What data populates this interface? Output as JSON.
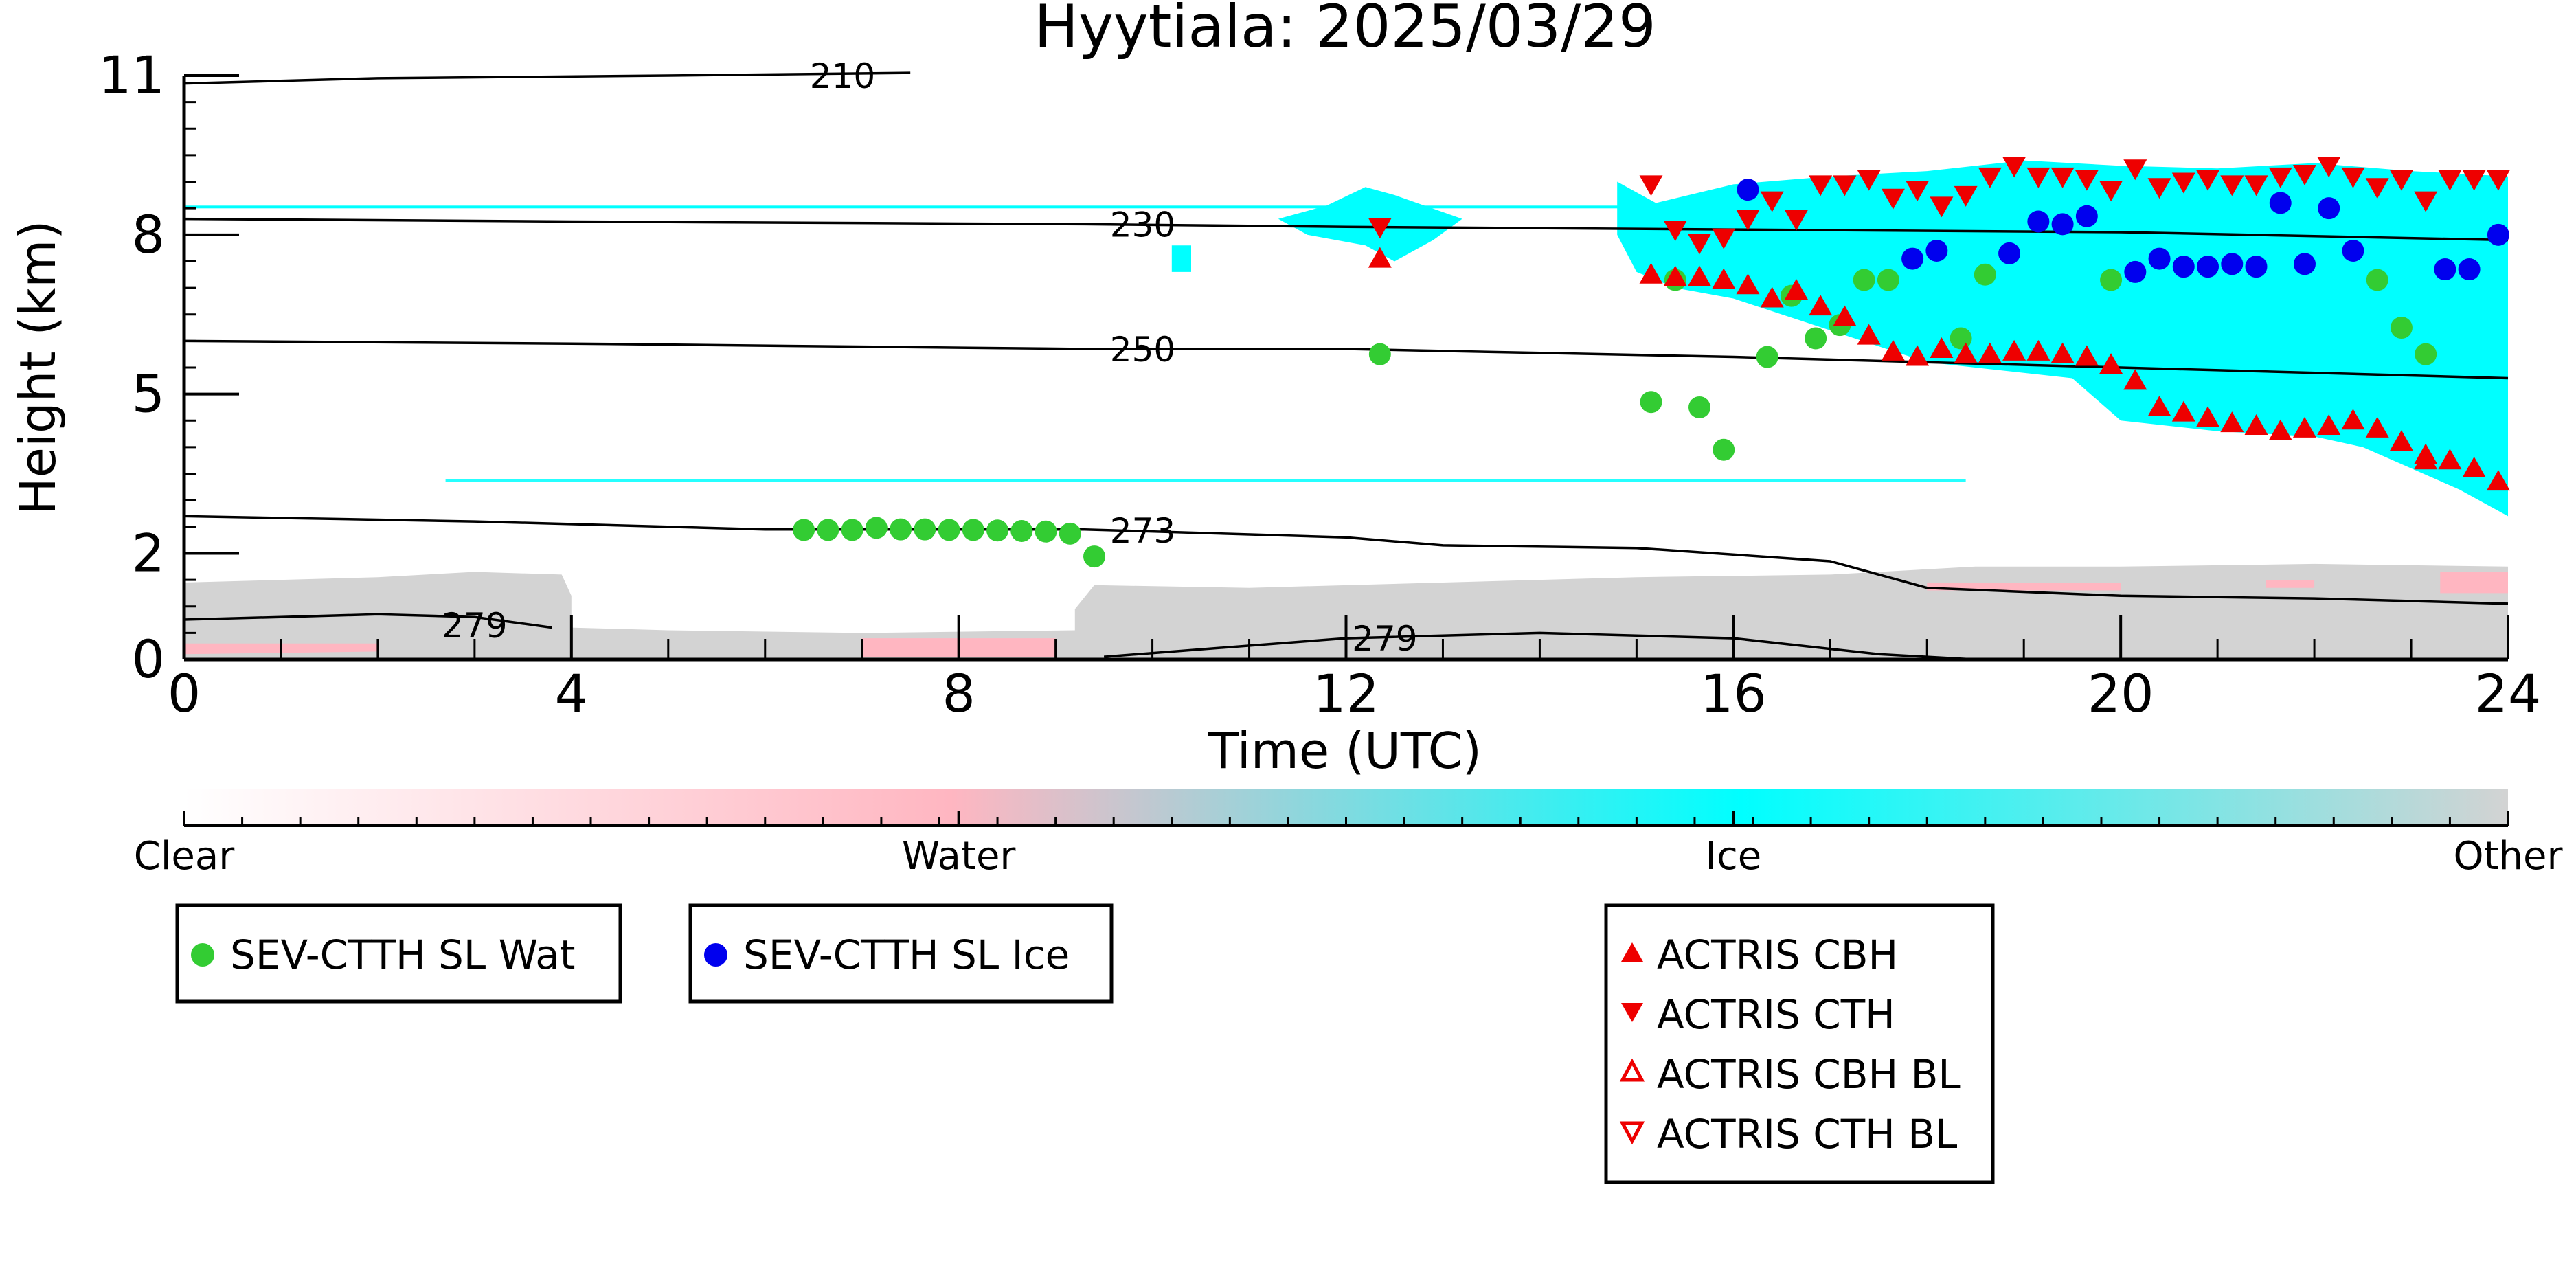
{
  "chart_data": {
    "type": "scatter",
    "title": "Hyytiala: 2025/03/29",
    "xlabel": "Time (UTC)",
    "ylabel": "Height (km)",
    "xlim": [
      0,
      24
    ],
    "ylim": [
      0,
      11
    ],
    "x_ticks": [
      0,
      4,
      8,
      12,
      16,
      20,
      24
    ],
    "y_ticks": [
      0,
      2,
      5,
      8,
      11
    ],
    "y_tick_labels": [
      "0",
      "2",
      "5",
      "8",
      "11"
    ],
    "colorbar": {
      "labels": [
        "Clear",
        "Water",
        "Ice",
        "Other"
      ],
      "colors": [
        "#ffffff",
        "#ffb6c1",
        "#00ffff",
        "#d3d3d3"
      ]
    },
    "contours": [
      {
        "label": "210",
        "points": [
          [
            0,
            10.85
          ],
          [
            2,
            10.95
          ],
          [
            5,
            11.0
          ],
          [
            7.5,
            11.05
          ]
        ]
      },
      {
        "label": "230",
        "points": [
          [
            0,
            8.3
          ],
          [
            4,
            8.25
          ],
          [
            9.3,
            8.2
          ],
          [
            12,
            8.15
          ],
          [
            16,
            8.1
          ],
          [
            20,
            8.05
          ],
          [
            24,
            7.9
          ]
        ]
      },
      {
        "label": "250",
        "points": [
          [
            0,
            6.0
          ],
          [
            4,
            5.95
          ],
          [
            9.3,
            5.85
          ],
          [
            12,
            5.85
          ],
          [
            16,
            5.7
          ],
          [
            20,
            5.5
          ],
          [
            24,
            5.3
          ]
        ]
      },
      {
        "label": "273",
        "points": [
          [
            0,
            2.7
          ],
          [
            3,
            2.6
          ],
          [
            6,
            2.45
          ],
          [
            9.3,
            2.45
          ],
          [
            12,
            2.3
          ],
          [
            13,
            2.15
          ],
          [
            15,
            2.1
          ],
          [
            17,
            1.85
          ],
          [
            18,
            1.35
          ],
          [
            20,
            1.2
          ],
          [
            22,
            1.15
          ],
          [
            24,
            1.05
          ]
        ]
      },
      {
        "label": "279",
        "points": [
          [
            0,
            0.75
          ],
          [
            1,
            0.8
          ],
          [
            2,
            0.85
          ],
          [
            3,
            0.8
          ],
          [
            3.8,
            0.6
          ]
        ]
      },
      {
        "label": "279",
        "points": [
          [
            9.5,
            0.05
          ],
          [
            12,
            0.4
          ],
          [
            14,
            0.5
          ],
          [
            16,
            0.4
          ],
          [
            17.5,
            0.1
          ],
          [
            18.5,
            0.0
          ]
        ]
      }
    ],
    "series": [
      {
        "name": "SEV-CTTH SL Wat",
        "color": "#33cc33",
        "marker": "circle",
        "points": [
          [
            6.4,
            2.44
          ],
          [
            6.65,
            2.44
          ],
          [
            6.9,
            2.44
          ],
          [
            7.15,
            2.48
          ],
          [
            7.4,
            2.45
          ],
          [
            7.65,
            2.45
          ],
          [
            7.9,
            2.44
          ],
          [
            8.15,
            2.44
          ],
          [
            8.4,
            2.43
          ],
          [
            8.65,
            2.42
          ],
          [
            8.9,
            2.41
          ],
          [
            9.15,
            2.37
          ],
          [
            9.4,
            1.94
          ],
          [
            12.35,
            5.75
          ],
          [
            15.15,
            4.85
          ],
          [
            15.4,
            7.15
          ],
          [
            15.65,
            4.75
          ],
          [
            15.9,
            3.95
          ],
          [
            16.35,
            5.7
          ],
          [
            16.6,
            6.85
          ],
          [
            16.85,
            6.05
          ],
          [
            17.1,
            6.3
          ],
          [
            17.35,
            7.15
          ],
          [
            17.6,
            7.15
          ],
          [
            18.35,
            6.05
          ],
          [
            18.6,
            7.25
          ],
          [
            19.9,
            7.15
          ],
          [
            22.65,
            7.15
          ],
          [
            22.9,
            6.25
          ],
          [
            23.15,
            5.75
          ]
        ]
      },
      {
        "name": "SEV-CTTH SL Ice",
        "color": "#0000ee",
        "marker": "circle",
        "points": [
          [
            16.15,
            8.85
          ],
          [
            17.85,
            7.55
          ],
          [
            18.1,
            7.7
          ],
          [
            18.85,
            7.65
          ],
          [
            19.15,
            8.25
          ],
          [
            19.4,
            8.2
          ],
          [
            19.65,
            8.35
          ],
          [
            20.15,
            7.3
          ],
          [
            20.4,
            7.55
          ],
          [
            20.65,
            7.4
          ],
          [
            20.9,
            7.4
          ],
          [
            21.15,
            7.45
          ],
          [
            21.4,
            7.4
          ],
          [
            21.65,
            8.6
          ],
          [
            21.9,
            7.45
          ],
          [
            22.15,
            8.5
          ],
          [
            22.4,
            7.7
          ],
          [
            23.35,
            7.35
          ],
          [
            23.6,
            7.35
          ],
          [
            23.9,
            8.0
          ]
        ]
      },
      {
        "name": "ACTRIS CBH",
        "color": "#ee0000",
        "marker": "triangle-up",
        "points": [
          [
            12.35,
            7.55
          ],
          [
            15.15,
            7.25
          ],
          [
            15.4,
            7.2
          ],
          [
            15.65,
            7.2
          ],
          [
            15.9,
            7.15
          ],
          [
            16.15,
            7.05
          ],
          [
            16.4,
            6.8
          ],
          [
            16.65,
            6.95
          ],
          [
            16.9,
            6.65
          ],
          [
            17.15,
            6.45
          ],
          [
            17.4,
            6.1
          ],
          [
            17.65,
            5.8
          ],
          [
            17.9,
            5.7
          ],
          [
            18.15,
            5.85
          ],
          [
            18.4,
            5.75
          ],
          [
            18.65,
            5.75
          ],
          [
            18.9,
            5.8
          ],
          [
            19.15,
            5.8
          ],
          [
            19.4,
            5.75
          ],
          [
            19.65,
            5.7
          ],
          [
            19.9,
            5.55
          ],
          [
            20.15,
            5.25
          ],
          [
            20.4,
            4.75
          ],
          [
            20.65,
            4.65
          ],
          [
            20.9,
            4.55
          ],
          [
            21.15,
            4.45
          ],
          [
            21.4,
            4.4
          ],
          [
            21.65,
            4.3
          ],
          [
            21.9,
            4.35
          ],
          [
            22.15,
            4.4
          ],
          [
            22.4,
            4.5
          ],
          [
            22.65,
            4.35
          ],
          [
            22.9,
            4.1
          ],
          [
            23.15,
            3.85
          ],
          [
            23.4,
            3.75
          ],
          [
            23.65,
            3.6
          ],
          [
            23.9,
            3.35
          ],
          [
            23.15,
            3.75
          ]
        ]
      },
      {
        "name": "ACTRIS CTH",
        "color": "#ee0000",
        "marker": "triangle-down",
        "points": [
          [
            12.35,
            8.15
          ],
          [
            15.15,
            8.95
          ],
          [
            15.4,
            8.1
          ],
          [
            15.65,
            7.85
          ],
          [
            15.9,
            7.95
          ],
          [
            16.15,
            8.3
          ],
          [
            16.4,
            8.65
          ],
          [
            16.65,
            8.3
          ],
          [
            16.9,
            8.95
          ],
          [
            17.15,
            8.95
          ],
          [
            17.4,
            9.05
          ],
          [
            17.65,
            8.7
          ],
          [
            17.9,
            8.85
          ],
          [
            18.15,
            8.55
          ],
          [
            18.4,
            8.75
          ],
          [
            18.65,
            9.1
          ],
          [
            18.9,
            9.3
          ],
          [
            19.15,
            9.1
          ],
          [
            19.4,
            9.1
          ],
          [
            19.65,
            9.05
          ],
          [
            19.9,
            8.85
          ],
          [
            20.15,
            9.25
          ],
          [
            20.4,
            8.9
          ],
          [
            20.65,
            9.0
          ],
          [
            20.9,
            9.05
          ],
          [
            21.15,
            8.95
          ],
          [
            21.4,
            8.95
          ],
          [
            21.65,
            9.1
          ],
          [
            21.9,
            9.15
          ],
          [
            22.15,
            9.3
          ],
          [
            22.4,
            9.1
          ],
          [
            22.65,
            8.9
          ],
          [
            22.9,
            9.05
          ],
          [
            23.15,
            8.65
          ],
          [
            23.4,
            9.05
          ],
          [
            23.65,
            9.05
          ],
          [
            23.9,
            9.05
          ]
        ]
      },
      {
        "name": "ACTRIS CBH BL",
        "color": "#ee0000",
        "marker": "triangle-up-open",
        "points": []
      },
      {
        "name": "ACTRIS CTH BL",
        "color": "#ee0000",
        "marker": "triangle-down-open",
        "points": []
      }
    ]
  }
}
